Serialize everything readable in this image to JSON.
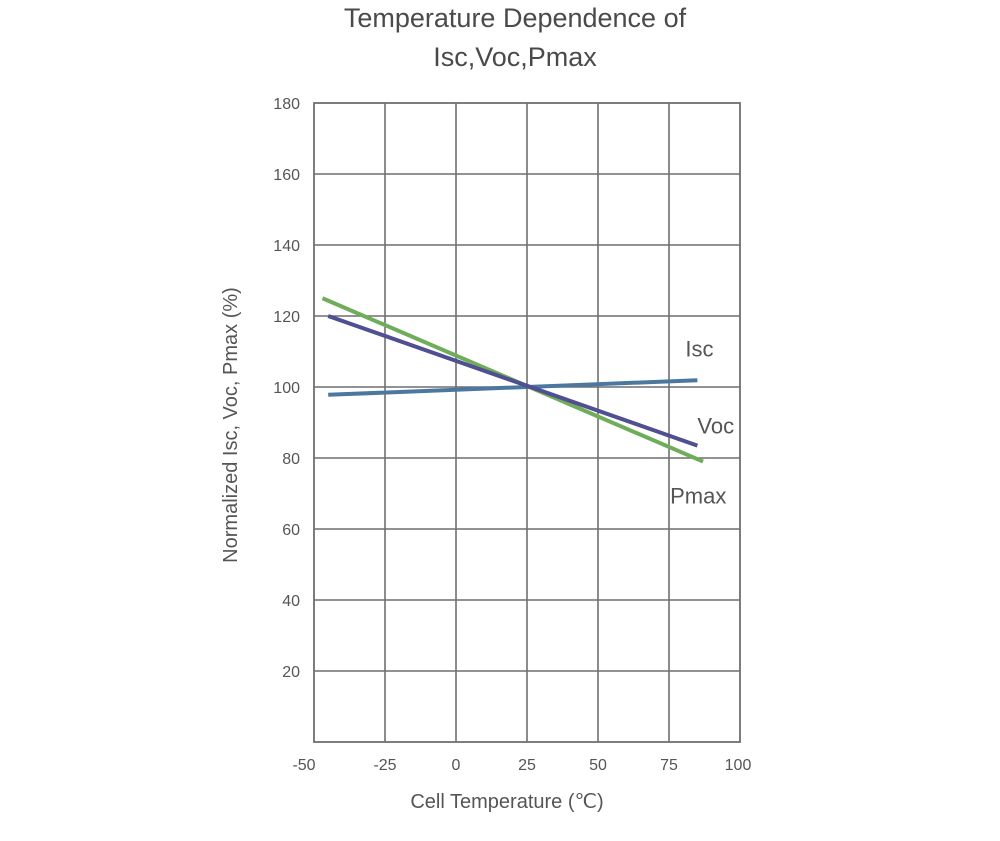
{
  "chart_data": {
    "type": "line",
    "title_lines": [
      "Temperature Dependence of",
      "Isc,Voc,Pmax"
    ],
    "xlabel": "Cell Temperature (℃)",
    "ylabel": "Normalized Isc, Voc, Pmax (%)",
    "xlim": [
      -50,
      100
    ],
    "ylim": [
      0,
      180
    ],
    "x_ticks": [
      "-50",
      "-25",
      "0",
      "25",
      "50",
      "75",
      "100"
    ],
    "y_ticks": [
      "20",
      "40",
      "60",
      "80",
      "100",
      "120",
      "140",
      "160",
      "180"
    ],
    "grid": true,
    "series": [
      {
        "name": "Isc",
        "color": "#4c78a0",
        "x": [
          -45,
          85
        ],
        "y": [
          97.8,
          101.9
        ]
      },
      {
        "name": "Voc",
        "color": "#4f4f91",
        "x": [
          -45,
          85
        ],
        "y": [
          120,
          83.5
        ]
      },
      {
        "name": "Pmax",
        "color": "#6fad5a",
        "x": [
          -47,
          87
        ],
        "y": [
          125,
          79
        ]
      }
    ]
  }
}
